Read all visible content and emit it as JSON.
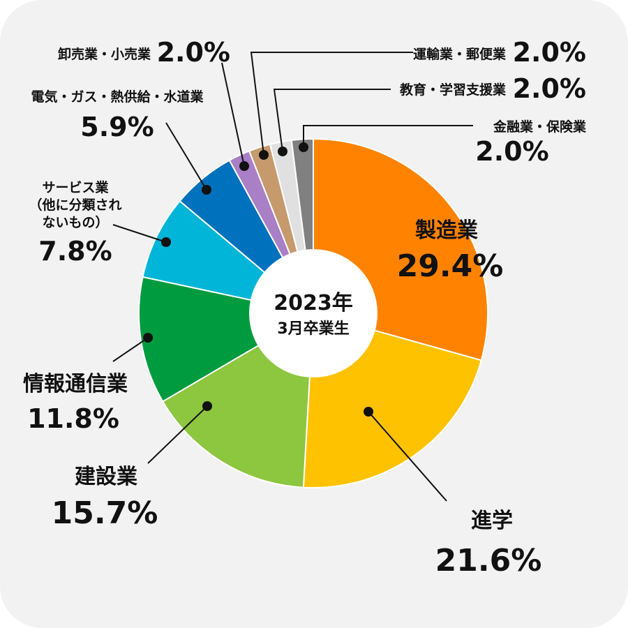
{
  "chart_data": {
    "type": "pie",
    "donut": true,
    "center_text": {
      "line1": "2023年",
      "line2": "3月卒業生"
    },
    "slices": [
      {
        "label": "製造業",
        "value": 29.4,
        "display": "29.4%",
        "color": "#FF8300"
      },
      {
        "label": "進学",
        "value": 21.6,
        "display": "21.6%",
        "color": "#FFC200"
      },
      {
        "label": "建設業",
        "value": 15.7,
        "display": "15.7%",
        "color": "#8DC63F"
      },
      {
        "label": "情報通信業",
        "value": 11.8,
        "display": "11.8%",
        "color": "#009B3E"
      },
      {
        "label_lines": [
          "サービス業",
          "（他に分類され",
          "ないもの）"
        ],
        "value": 7.8,
        "display": "7.8%",
        "color": "#00B5D8"
      },
      {
        "label": "電気・ガス・熱供給・水道業",
        "value": 5.9,
        "display": "5.9%",
        "color": "#0071BC"
      },
      {
        "label": "卸売業・小売業",
        "value": 2.0,
        "display": "2.0%",
        "color": "#A97FC6"
      },
      {
        "label": "運輸業・郵便業",
        "value": 2.0,
        "display": "2.0%",
        "color": "#C69A6D"
      },
      {
        "label": "教育・学習支援業",
        "value": 2.0,
        "display": "2.0%",
        "color": "#E0E0E0"
      },
      {
        "label": "金融業・保険業",
        "value": 2.0,
        "display": "2.0%",
        "color": "#808080"
      }
    ]
  }
}
